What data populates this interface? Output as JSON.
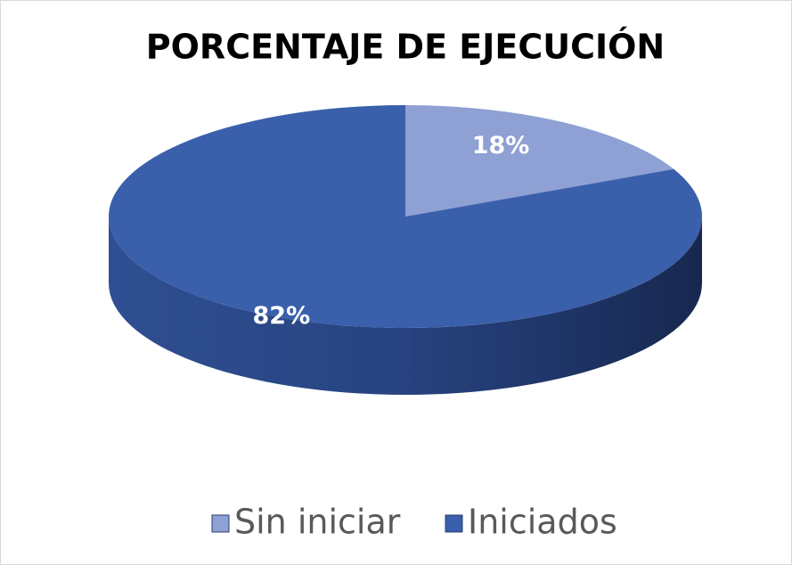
{
  "chart_data": {
    "type": "pie",
    "title": "PORCENTAJE DE EJECUCIÓN",
    "categories": [
      "Sin iniciar",
      "Iniciados"
    ],
    "values": [
      18,
      82
    ],
    "value_labels": [
      "18%",
      "82%"
    ],
    "colors": [
      "#8ea0d4",
      "#3a5fab"
    ],
    "legend": "bottom"
  }
}
